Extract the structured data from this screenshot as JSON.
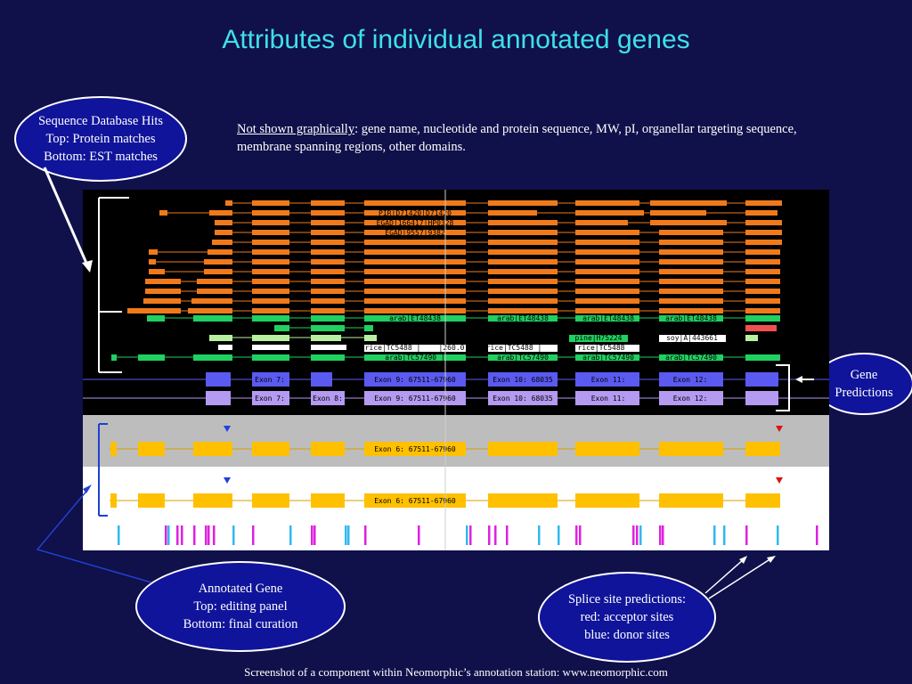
{
  "title": "Attributes of individual annotated genes",
  "note": {
    "underlined": "Not shown graphically",
    "text": ": gene name, nucleotide and protein sequence, MW, pI, organellar targeting sequence, membrane spanning regions, other domains."
  },
  "callouts": {
    "sequence_hits": [
      "Sequence Database Hits",
      "Top: Protein matches",
      "Bottom: EST matches"
    ],
    "gene_predictions": [
      "Gene",
      "Predictions"
    ],
    "annotated_gene": [
      "Annotated Gene",
      "Top: editing panel",
      "Bottom: final curation"
    ],
    "splice_sites": [
      "Splice site predictions:",
      "red: acceptor sites",
      "blue: donor sites"
    ]
  },
  "footer": "Screenshot of a component within Neomorphic’s annotation station: www.neomorphic.com",
  "colors": {
    "background": "#10104a",
    "title": "#3fe0e8",
    "protein_hit": "#f07a1a",
    "est_hit": "#20d060",
    "gene_pred_1": "#5a5af0",
    "gene_pred_2": "#b49af0",
    "exon": "#ffc000",
    "donor": "#30b8f0",
    "acceptor": "#e020e0"
  },
  "track_labels": {
    "protein": [
      "PIR|D71420|D71420",
      "EGAD|166417|HP0328",
      "EGAD|9557|9382"
    ],
    "est": [
      "arab|ET48438",
      "arab|ET48438",
      "arab|ET48438",
      "arab|ET48438"
    ],
    "est_misc": [
      "pine|H75224",
      "soy|A|443661",
      "rice|TC5488 |",
      "|260.0",
      "rice|TC5488 |",
      "rice|TC5488"
    ],
    "est_bottom": [
      "arab|TC57490 |",
      "arab|TC57490",
      "arab|TC57490",
      "arab|TC57490"
    ],
    "gene_pred_1": [
      "Exon 7:",
      "Exon 9: 67511-67960",
      "Exon 10: 68035",
      "Exon 11:",
      "Exon 12:"
    ],
    "gene_pred_2": [
      "Exon 7:",
      "Exon 8:",
      "Exon 9: 67511-67960",
      "Exon 10: 68035",
      "Exon 11:",
      "Exon 12:"
    ],
    "annotated": [
      "Exon 6: 67511-67960",
      "Exon 6: 67511-67960"
    ]
  }
}
